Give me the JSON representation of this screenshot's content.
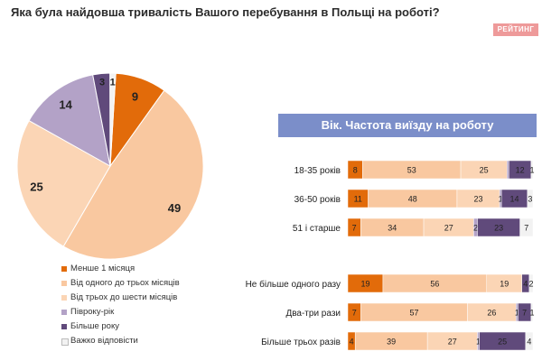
{
  "header": {
    "question": "Яка була найдовша тривалість Вашого перебування в Польщі на роботі?",
    "logo": "РЕЙТИНГ"
  },
  "panel": {
    "title": "Вік. Частота виїзду на роботу"
  },
  "colors": [
    "#e26b0a",
    "#f9c8a0",
    "#fbd5b5",
    "#b3a2c7",
    "#604a7b",
    "#f2f2f2"
  ],
  "chart_data": [
    {
      "type": "pie",
      "categories": [
        "Менше 1 місяця",
        "Від одного до трьох  місяців",
        "Від трьох до шести місяців",
        "Півроку-рік",
        "Більше року",
        "Важко відповісти"
      ],
      "values": [
        9,
        49,
        25,
        14,
        3,
        1
      ]
    },
    {
      "type": "bar",
      "stacked": true,
      "orientation": "horizontal",
      "categories": [
        "18-35 років",
        "36-50 років",
        "51 і старше",
        "Не більше одного разу",
        "Два-три рази",
        "Більше трьох разів"
      ],
      "series_names": [
        "Менше 1 місяця",
        "Від одного до трьох  місяців",
        "Від трьох до шести місяців",
        "Півроку-рік",
        "Більше року",
        "Важко відповісти"
      ],
      "rows": [
        {
          "values": [
            8,
            53,
            25,
            1,
            12,
            1
          ],
          "labels": [
            "8",
            "53",
            "25",
            "",
            "12",
            "1"
          ]
        },
        {
          "values": [
            11,
            48,
            23,
            1,
            14,
            3
          ],
          "labels": [
            "11",
            "48",
            "23",
            "1",
            "14",
            "3"
          ]
        },
        {
          "values": [
            7,
            34,
            27,
            2,
            23,
            7
          ],
          "labels": [
            "7",
            "34",
            "27",
            "2",
            "23",
            "7"
          ]
        },
        {
          "values": [
            19,
            56,
            19,
            0,
            4,
            2
          ],
          "labels": [
            "19",
            "56",
            "19",
            "",
            "4",
            "2"
          ]
        },
        {
          "values": [
            7,
            57,
            26,
            1,
            7,
            1
          ],
          "labels": [
            "7",
            "57",
            "26",
            "1",
            "7",
            "1"
          ]
        },
        {
          "values": [
            4,
            39,
            27,
            1,
            25,
            4
          ],
          "labels": [
            "4",
            "39",
            "27",
            "1",
            "25",
            "4"
          ]
        }
      ],
      "xlim": [
        0,
        100
      ]
    }
  ]
}
